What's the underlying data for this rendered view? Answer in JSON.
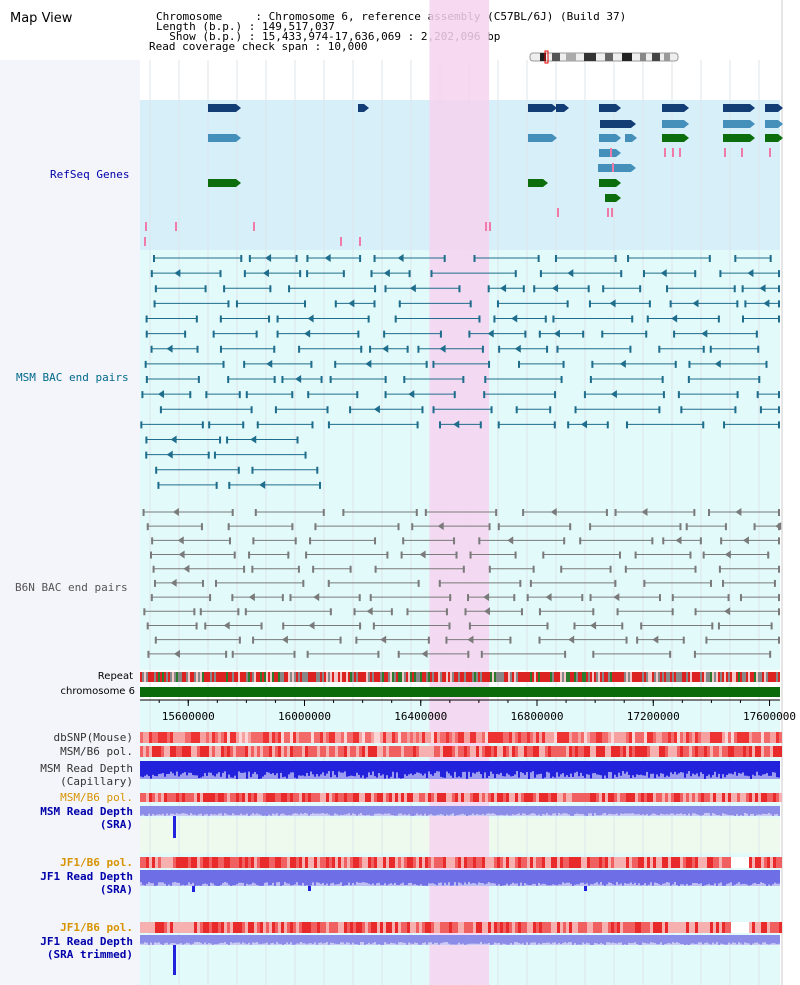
{
  "view_title": "Map View",
  "header": {
    "chromosome": "Chromosome     : Chromosome 6, reference assembly (C57BL/6J) (Build 37)",
    "length": "Length (b.p.) : 149,517,037",
    "show": "  Show (b.p.) : 15,433,974-17,636,069 : 2,202,096 bp",
    "coverage": "Read coverage check span : 10,000"
  },
  "tracks": {
    "refseq": "RefSeq Genes",
    "msm_bac": "MSM BAC end pairs",
    "b6n_bac": "B6N BAC end pairs",
    "repeat": "Repeat",
    "chromosome": "chromosome 6",
    "dbsnp": "dbSNP(Mouse)",
    "msm_b6_pol": "MSM/B6 pol.",
    "msm_depth_cap_1": "MSM Read Depth",
    "msm_depth_cap_2": "(Capillary)",
    "msm_b6_pol_sra": "MSM/B6 pol.",
    "msm_depth_sra_1": "MSM Read Depth",
    "msm_depth_sra_2": "(SRA)",
    "jf1_b6_pol": "JF1/B6 pol.",
    "jf1_depth_sra_1": "JF1 Read Depth",
    "jf1_depth_sra_2": "(SRA)",
    "jf1_b6_pol_trim": "JF1/B6 pol.",
    "jf1_depth_trim_1": "JF1 Read Depth",
    "jf1_depth_trim_2": "(SRA trimmed)"
  },
  "axis": {
    "ticks": [
      "15600000",
      "16000000",
      "16400000",
      "16800000",
      "17200000",
      "17600000"
    ],
    "range": [
      15433974,
      17636069
    ]
  },
  "highlight": {
    "start": 16430000,
    "end": 16635000
  },
  "colors": {
    "refseq_bg": "#d7eff9",
    "bac_bg": "#e2fafa",
    "highlight": "#f6d2ef",
    "gene_dark": "#123d75",
    "gene_mid": "#4590bb",
    "gene_green": "#0c6d0c",
    "msm_pair": "#1f6d8c",
    "b6n_pair": "#7a7a7a",
    "chrom_bar": "#0b6b0b",
    "depth_blue": "#2222dd",
    "depth_light": "#8b8be8",
    "label_blue": "#0000aa",
    "label_orange": "#d79400",
    "label_teal": "#006a8a"
  }
}
